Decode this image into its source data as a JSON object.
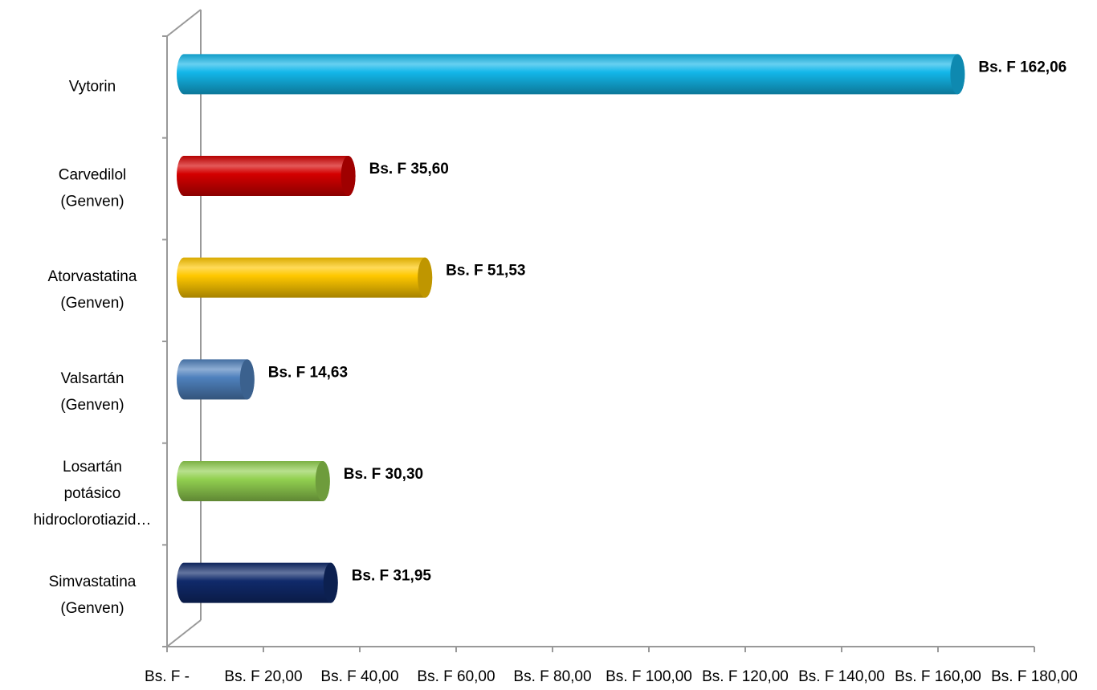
{
  "chart_data": {
    "type": "bar",
    "orientation": "horizontal",
    "categories": [
      [
        "Vytorin"
      ],
      [
        "Carvedilol",
        "(Genven)"
      ],
      [
        "Atorvastatina",
        "(Genven)"
      ],
      [
        "Valsartán",
        "(Genven)"
      ],
      [
        "Losartán",
        "potásico",
        "hidroclorotiazid…"
      ],
      [
        "Simvastatina",
        "(Genven)"
      ]
    ],
    "values": [
      162.06,
      35.6,
      51.53,
      14.63,
      30.3,
      31.95
    ],
    "value_labels": [
      "Bs. F 162,06",
      "Bs. F 35,60",
      "Bs. F 51,53",
      "Bs. F 14,63",
      "Bs. F 30,30",
      "Bs. F 31,95"
    ],
    "colors": [
      "#13b7ea",
      "#d40000",
      "#ffc800",
      "#4f81bd",
      "#92d050",
      "#102a6b"
    ],
    "xlim": [
      0,
      180
    ],
    "xticks": [
      {
        "value": 0,
        "label": "Bs. F -"
      },
      {
        "value": 20,
        "label": "Bs. F 20,00"
      },
      {
        "value": 40,
        "label": "Bs. F 40,00"
      },
      {
        "value": 60,
        "label": "Bs. F 60,00"
      },
      {
        "value": 80,
        "label": "Bs. F 80,00"
      },
      {
        "value": 100,
        "label": "Bs. F 100,00"
      },
      {
        "value": 120,
        "label": "Bs. F 120,00"
      },
      {
        "value": 140,
        "label": "Bs. F 140,00"
      },
      {
        "value": 160,
        "label": "Bs. F 160,00"
      },
      {
        "value": 180,
        "label": "Bs. F 180,00"
      }
    ]
  }
}
